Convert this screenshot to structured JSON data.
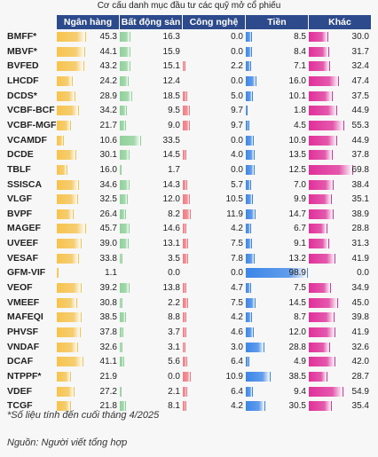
{
  "title": "Cơ cấu danh mục đầu tư các quỹ mở cổ phiếu",
  "note": "*Số liệu tính đến cuối tháng 4/2025",
  "source": "Nguồn: Người viết tổng hợp",
  "colors": {
    "header_bg": "#2d4b8c",
    "ngan_hang": "#f6c34e",
    "bat_dong_san": "#8fd19a",
    "cong_nghe": "#f07c84",
    "tien": "#3b86e8",
    "khac": "#e0319a"
  },
  "chart_data": {
    "type": "table",
    "columns": [
      "Ngân hàng",
      "Bất động sản",
      "Công nghệ",
      "Tiền",
      "Khác"
    ],
    "rows": [
      {
        "fund": "BMFF*",
        "values": [
          45.3,
          16.3,
          0.0,
          8.5,
          30.0
        ]
      },
      {
        "fund": "MBVF*",
        "values": [
          44.1,
          15.9,
          0.0,
          8.4,
          31.7
        ]
      },
      {
        "fund": "BVFED",
        "values": [
          43.2,
          15.1,
          2.2,
          7.1,
          32.4
        ]
      },
      {
        "fund": "LHCDF",
        "values": [
          24.2,
          12.4,
          0.0,
          16.0,
          47.4
        ]
      },
      {
        "fund": "DCDS*",
        "values": [
          28.9,
          18.5,
          5.0,
          10.1,
          37.5
        ]
      },
      {
        "fund": "VCBF-BCF",
        "values": [
          34.2,
          9.5,
          9.7,
          1.8,
          44.9
        ]
      },
      {
        "fund": "VCBF-MGF",
        "values": [
          21.7,
          9.0,
          9.7,
          4.5,
          55.3
        ]
      },
      {
        "fund": "VCAMDF",
        "values": [
          10.6,
          33.5,
          0.0,
          10.9,
          44.9
        ]
      },
      {
        "fund": "DCDE",
        "values": [
          30.1,
          14.5,
          4.0,
          13.5,
          37.8
        ]
      },
      {
        "fund": "TBLF",
        "values": [
          16.0,
          1.7,
          0.0,
          12.5,
          69.8
        ]
      },
      {
        "fund": "SSISCA",
        "values": [
          34.6,
          14.3,
          5.7,
          7.0,
          38.4
        ]
      },
      {
        "fund": "VLGF",
        "values": [
          32.5,
          12.0,
          10.5,
          9.9,
          35.1
        ]
      },
      {
        "fund": "BVPF",
        "values": [
          26.4,
          8.2,
          11.9,
          14.7,
          38.9
        ]
      },
      {
        "fund": "MAGEF",
        "values": [
          45.7,
          14.6,
          4.2,
          6.7,
          28.8
        ]
      },
      {
        "fund": "UVEEF",
        "values": [
          39.0,
          13.1,
          7.5,
          9.1,
          31.3
        ]
      },
      {
        "fund": "VESAF",
        "values": [
          33.8,
          3.5,
          7.8,
          13.2,
          41.9
        ]
      },
      {
        "fund": "GFM-VIF",
        "values": [
          1.1,
          0.0,
          0.0,
          98.9,
          0.0
        ]
      },
      {
        "fund": "VEOF",
        "values": [
          39.2,
          13.8,
          4.7,
          7.5,
          34.9
        ]
      },
      {
        "fund": "VMEEF",
        "values": [
          30.8,
          2.2,
          7.5,
          14.5,
          45.0
        ]
      },
      {
        "fund": "MAFEQI",
        "values": [
          38.5,
          8.8,
          4.2,
          8.7,
          39.8
        ]
      },
      {
        "fund": "PHVSF",
        "values": [
          37.8,
          3.7,
          4.6,
          12.0,
          41.9
        ]
      },
      {
        "fund": "VNDAF",
        "values": [
          32.6,
          3.1,
          3.0,
          28.8,
          32.6
        ]
      },
      {
        "fund": "DCAF",
        "values": [
          41.1,
          5.6,
          6.4,
          4.9,
          42.0
        ]
      },
      {
        "fund": "NTPPF*",
        "values": [
          21.9,
          0.0,
          10.9,
          38.5,
          28.7
        ]
      },
      {
        "fund": "VDEF",
        "values": [
          27.2,
          2.1,
          6.4,
          9.4,
          54.9
        ]
      },
      {
        "fund": "TCGF",
        "values": [
          21.8,
          8.1,
          4.2,
          30.5,
          35.4
        ]
      }
    ]
  }
}
